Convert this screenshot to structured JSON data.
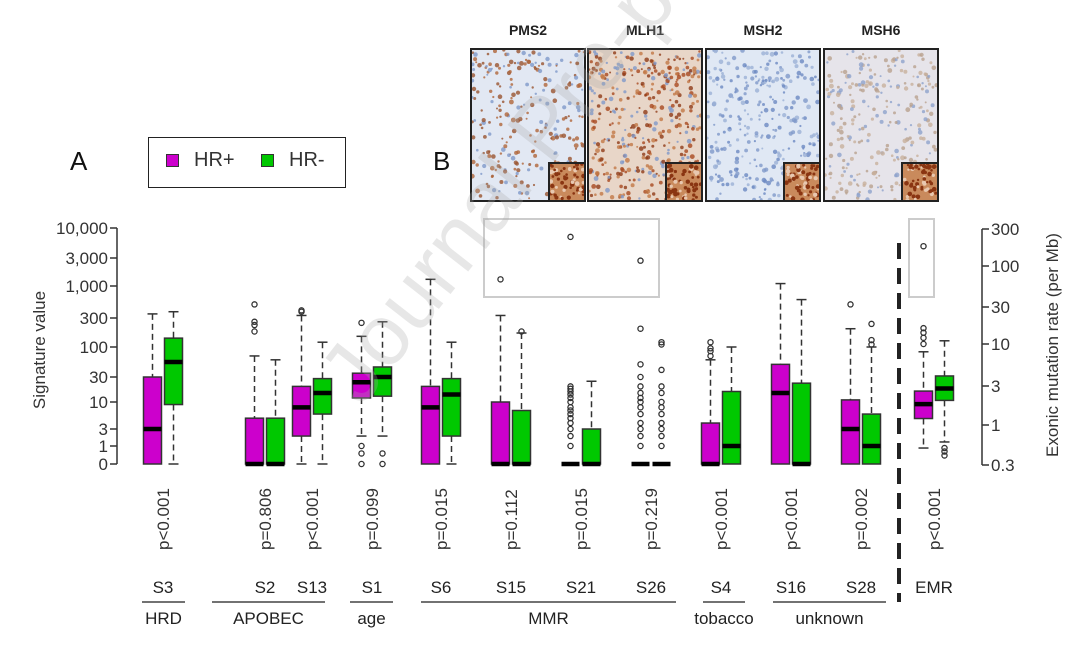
{
  "panel_a_label": "A",
  "panel_b_label": "B",
  "legend": {
    "items": [
      {
        "label": "HR+",
        "color": "#cc00cc"
      },
      {
        "label": "HR-",
        "color": "#00c800"
      }
    ]
  },
  "ihc_panels": [
    {
      "label": "PMS2",
      "stain": "moderate"
    },
    {
      "label": "MLH1",
      "stain": "strong"
    },
    {
      "label": "MSH2",
      "stain": "weak"
    },
    {
      "label": "MSH6",
      "stain": "faint"
    }
  ],
  "watermark": "Journal Pre-proof",
  "chart_data": {
    "type": "boxplot",
    "ylabel_left": "Signature value",
    "ylabel_right": "Exonic mutation rate (per Mb)",
    "yticks_left": [
      "10,000",
      "3,000",
      "1,000",
      "300",
      "100",
      "30",
      "10",
      "3",
      "1",
      "0"
    ],
    "ytick_values_left": [
      10000,
      3000,
      1000,
      300,
      100,
      30,
      10,
      3,
      1,
      0
    ],
    "yticks_right": [
      "300",
      "100",
      "30",
      "10",
      "3",
      "1",
      "0.3"
    ],
    "ytick_values_right": [
      300,
      100,
      30,
      10,
      3,
      1,
      0.3
    ],
    "series_colors": {
      "HR+": "#cc00cc",
      "HR-": "#00c800"
    },
    "groups": [
      {
        "category": "HRD",
        "signatures": [
          "S3"
        ]
      },
      {
        "category": "APOBEC",
        "signatures": [
          "S2",
          "S13"
        ]
      },
      {
        "category": "age",
        "signatures": [
          "S1"
        ]
      },
      {
        "category": "MMR",
        "signatures": [
          "S6",
          "S15",
          "S21",
          "S26"
        ]
      },
      {
        "category": "tobacco",
        "signatures": [
          "S4"
        ]
      },
      {
        "category": "unknown",
        "signatures": [
          "S16",
          "S28"
        ]
      },
      {
        "category": "",
        "signatures": [
          "EMR"
        ]
      }
    ],
    "signatures": [
      {
        "name": "S3",
        "p": "p<0.001",
        "hr_pos": {
          "min": 0,
          "q1": 0,
          "median": 3,
          "q3": 30,
          "max": 350,
          "outliers": []
        },
        "hr_neg": {
          "min": 0,
          "q1": 9,
          "median": 55,
          "q3": 140,
          "max": 380,
          "outliers": []
        }
      },
      {
        "name": "S2",
        "p": "p=0.806",
        "hr_pos": {
          "min": 0,
          "q1": 0,
          "median": 0,
          "q3": 5,
          "max": 70,
          "outliers": [
            180,
            230,
            260,
            500
          ]
        },
        "hr_neg": {
          "min": 0,
          "q1": 0,
          "median": 0,
          "q3": 5,
          "max": 60,
          "outliers": []
        }
      },
      {
        "name": "S13",
        "p": "p<0.001",
        "hr_pos": {
          "min": 0,
          "q1": 2,
          "median": 8,
          "q3": 20,
          "max": 330,
          "outliers": [
            380,
            400
          ]
        },
        "hr_neg": {
          "min": 0,
          "q1": 6,
          "median": 15,
          "q3": 28,
          "max": 120,
          "outliers": []
        }
      },
      {
        "name": "S1",
        "p": "p=0.099",
        "hr_pos": {
          "min": 2,
          "q1": 12,
          "median": 24,
          "q3": 35,
          "max": 150,
          "outliers": [
            250,
            1,
            0.5,
            0
          ]
        },
        "hr_neg": {
          "min": 2,
          "q1": 13,
          "median": 30,
          "q3": 45,
          "max": 260,
          "outliers": [
            0.5,
            0
          ]
        }
      },
      {
        "name": "S6",
        "p": "p=0.015",
        "hr_pos": {
          "min": 0,
          "q1": 0,
          "median": 8,
          "q3": 20,
          "max": 1300,
          "outliers": []
        },
        "hr_neg": {
          "min": 0,
          "q1": 2,
          "median": 14,
          "q3": 28,
          "max": 120,
          "outliers": []
        }
      },
      {
        "name": "S15",
        "p": "p=0.112",
        "hr_pos": {
          "min": 0,
          "q1": 0,
          "median": 0,
          "q3": 10,
          "max": 330,
          "outliers": [
            1300
          ]
        },
        "hr_neg": {
          "min": 0,
          "q1": 0,
          "median": 0,
          "q3": 7,
          "max": 170,
          "outliers": [
            180
          ]
        }
      },
      {
        "name": "S21",
        "p": "p=0.015",
        "hr_pos": {
          "min": 0,
          "q1": 0,
          "median": 0,
          "q3": 0,
          "max": 0,
          "outliers": [
            1,
            2,
            3,
            4,
            5,
            6,
            7,
            8,
            10,
            12,
            14,
            16,
            18,
            20,
            7000
          ]
        },
        "hr_neg": {
          "min": 0,
          "q1": 0,
          "median": 0,
          "q3": 3,
          "max": 25,
          "outliers": []
        }
      },
      {
        "name": "S26",
        "p": "p=0.219",
        "hr_pos": {
          "min": 0,
          "q1": 0,
          "median": 0,
          "q3": 0,
          "max": 0,
          "outliers": [
            1,
            2,
            3,
            4,
            6,
            8,
            10,
            12,
            15,
            20,
            30,
            50,
            200,
            2700
          ]
        },
        "hr_neg": {
          "min": 0,
          "q1": 0,
          "median": 0,
          "q3": 0,
          "max": 0,
          "outliers": [
            1,
            2,
            3,
            4,
            6,
            8,
            10,
            15,
            20,
            40,
            110,
            120
          ]
        }
      },
      {
        "name": "S4",
        "p": "p<0.001",
        "hr_pos": {
          "min": 0,
          "q1": 0,
          "median": 0,
          "q3": 4,
          "max": 60,
          "outliers": [
            70,
            85,
            95,
            120
          ]
        },
        "hr_neg": {
          "min": 0,
          "q1": 0,
          "median": 1,
          "q3": 16,
          "max": 100,
          "outliers": []
        }
      },
      {
        "name": "S16",
        "p": "p<0.001",
        "hr_pos": {
          "min": 0,
          "q1": 0,
          "median": 15,
          "q3": 50,
          "max": 1100,
          "outliers": []
        },
        "hr_neg": {
          "min": 0,
          "q1": 0,
          "median": 0,
          "q3": 23,
          "max": 600,
          "outliers": []
        }
      },
      {
        "name": "S28",
        "p": "p=0.002",
        "hr_pos": {
          "min": 0,
          "q1": 0,
          "median": 3,
          "q3": 11,
          "max": 200,
          "outliers": [
            500
          ]
        },
        "hr_neg": {
          "min": 0,
          "q1": 0,
          "median": 1,
          "q3": 6,
          "max": 100,
          "outliers": [
            110,
            130,
            240
          ]
        }
      },
      {
        "name": "EMR",
        "p": "p<0.001",
        "axis": "right",
        "hr_pos": {
          "min": 0.5,
          "q1": 1.2,
          "median": 1.8,
          "q3": 2.6,
          "max": 8,
          "outliers": [
            10,
            12,
            14,
            16,
            180
          ]
        },
        "hr_neg": {
          "min": 0.6,
          "q1": 2,
          "median": 2.8,
          "q3": 4,
          "max": 11,
          "outliers": [
            0.4,
            0.45,
            0.5
          ]
        }
      }
    ],
    "inset_boxes": [
      "MMR extreme outliers",
      "EMR extreme outlier"
    ]
  }
}
